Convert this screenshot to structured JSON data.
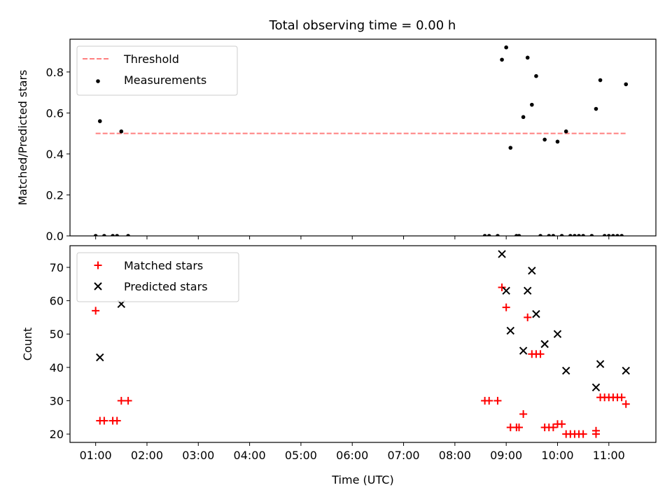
{
  "title": "Total observing time = 0.00 h",
  "chart_data": [
    {
      "type": "scatter",
      "ylabel": "Matched/Predicted stars",
      "xlabel": "",
      "ylim": [
        0,
        0.96
      ],
      "xlim": [
        "00:30",
        "11:55"
      ],
      "yticks": [
        "0.0",
        "0.2",
        "0.4",
        "0.6",
        "0.8"
      ],
      "legend_position": "top-left",
      "grid": false,
      "threshold": {
        "name": "Threshold",
        "value": 0.5,
        "x_range": [
          "01:00",
          "11:20"
        ],
        "color": "#ff7f7f",
        "style": "dashed"
      },
      "series": [
        {
          "name": "Measurements",
          "color": "#000000",
          "marker": "dot",
          "points": [
            [
              "01:00",
              0
            ],
            [
              "01:05",
              0.56
            ],
            [
              "01:10",
              0
            ],
            [
              "01:20",
              0
            ],
            [
              "01:25",
              0
            ],
            [
              "01:30",
              0.51
            ],
            [
              "01:38",
              0
            ],
            [
              "08:35",
              0
            ],
            [
              "08:40",
              0
            ],
            [
              "08:50",
              0
            ],
            [
              "08:55",
              0.86
            ],
            [
              "09:00",
              0.92
            ],
            [
              "09:05",
              0.43
            ],
            [
              "09:12",
              0
            ],
            [
              "09:15",
              0
            ],
            [
              "09:20",
              0.58
            ],
            [
              "09:25",
              0.87
            ],
            [
              "09:30",
              0.64
            ],
            [
              "09:35",
              0.78
            ],
            [
              "09:40",
              0
            ],
            [
              "09:45",
              0.47
            ],
            [
              "09:50",
              0
            ],
            [
              "09:55",
              0
            ],
            [
              "10:00",
              0.46
            ],
            [
              "10:05",
              0
            ],
            [
              "10:10",
              0.51
            ],
            [
              "10:15",
              0
            ],
            [
              "10:20",
              0
            ],
            [
              "10:25",
              0
            ],
            [
              "10:30",
              0
            ],
            [
              "10:40",
              0
            ],
            [
              "10:45",
              0.62
            ],
            [
              "10:50",
              0.76
            ],
            [
              "10:55",
              0
            ],
            [
              "11:00",
              0
            ],
            [
              "11:05",
              0
            ],
            [
              "11:10",
              0
            ],
            [
              "11:15",
              0
            ],
            [
              "11:20",
              0.74
            ]
          ]
        }
      ]
    },
    {
      "type": "scatter",
      "ylabel": "Count",
      "xlabel": "Time (UTC)",
      "ylim": [
        17.5,
        76.5
      ],
      "xlim": [
        "00:30",
        "11:55"
      ],
      "yticks": [
        "20",
        "30",
        "40",
        "50",
        "60",
        "70"
      ],
      "xticks": [
        "01:00",
        "02:00",
        "03:00",
        "04:00",
        "05:00",
        "06:00",
        "07:00",
        "08:00",
        "09:00",
        "10:00",
        "11:00"
      ],
      "legend_position": "top-left",
      "grid": false,
      "series": [
        {
          "name": "Matched stars",
          "color": "#ff0000",
          "marker": "plus",
          "points": [
            [
              "01:00",
              57
            ],
            [
              "01:05",
              24
            ],
            [
              "01:10",
              24
            ],
            [
              "01:20",
              24
            ],
            [
              "01:25",
              24
            ],
            [
              "01:30",
              30
            ],
            [
              "01:38",
              30
            ],
            [
              "08:35",
              30
            ],
            [
              "08:40",
              30
            ],
            [
              "08:50",
              30
            ],
            [
              "08:55",
              64
            ],
            [
              "09:00",
              58
            ],
            [
              "09:05",
              22
            ],
            [
              "09:12",
              22
            ],
            [
              "09:15",
              22
            ],
            [
              "09:20",
              26
            ],
            [
              "09:25",
              55
            ],
            [
              "09:30",
              44
            ],
            [
              "09:35",
              44
            ],
            [
              "09:40",
              44
            ],
            [
              "09:45",
              22
            ],
            [
              "09:50",
              22
            ],
            [
              "09:55",
              22
            ],
            [
              "10:00",
              23
            ],
            [
              "10:05",
              23
            ],
            [
              "10:10",
              20
            ],
            [
              "10:15",
              20
            ],
            [
              "10:20",
              20
            ],
            [
              "10:25",
              20
            ],
            [
              "10:30",
              20
            ],
            [
              "10:45",
              21
            ],
            [
              "10:45",
              20
            ],
            [
              "10:50",
              31
            ],
            [
              "10:55",
              31
            ],
            [
              "11:00",
              31
            ],
            [
              "11:05",
              31
            ],
            [
              "11:10",
              31
            ],
            [
              "11:15",
              31
            ],
            [
              "11:20",
              29
            ]
          ]
        },
        {
          "name": "Predicted stars",
          "color": "#000000",
          "marker": "x",
          "points": [
            [
              "01:05",
              43
            ],
            [
              "01:30",
              59
            ],
            [
              "08:55",
              74
            ],
            [
              "09:00",
              63
            ],
            [
              "09:05",
              51
            ],
            [
              "09:20",
              45
            ],
            [
              "09:25",
              63
            ],
            [
              "09:30",
              69
            ],
            [
              "09:35",
              56
            ],
            [
              "09:45",
              47
            ],
            [
              "10:00",
              50
            ],
            [
              "10:10",
              39
            ],
            [
              "10:45",
              34
            ],
            [
              "10:50",
              41
            ],
            [
              "11:20",
              39
            ]
          ]
        }
      ]
    }
  ]
}
